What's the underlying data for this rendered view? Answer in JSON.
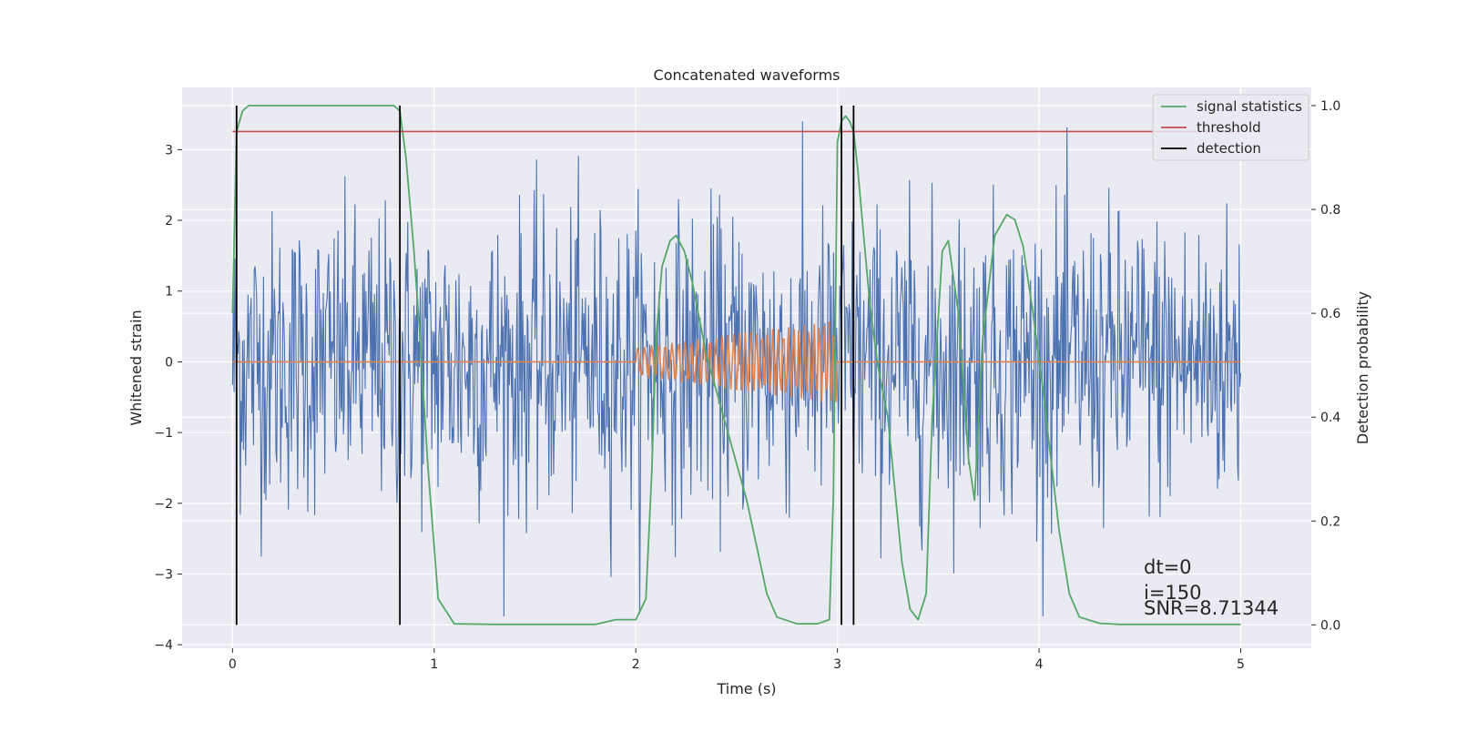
{
  "chart_data": {
    "type": "line",
    "title": "Concatenated waveforms",
    "xlabel": "Time (s)",
    "ylabel": "Whitened strain",
    "y2label": "Detection probability",
    "xlim": [
      -0.25,
      5.35
    ],
    "ylim": [
      -4.05,
      3.88
    ],
    "y2lim": [
      -0.045,
      1.035
    ],
    "xticks": [
      0,
      1,
      2,
      3,
      4,
      5
    ],
    "yticks": [
      -4,
      -3,
      -2,
      -1,
      0,
      1,
      2,
      3
    ],
    "y2ticks": [
      0.0,
      0.2,
      0.4,
      0.6,
      0.8,
      1.0
    ],
    "grid": true,
    "legend_position": "top-right",
    "colors": {
      "background": "#eaeaf2",
      "grid": "#ffffff",
      "noise": "#4c72b0",
      "waveform": "#dd8452",
      "signal_statistics": "#55a868",
      "threshold": "#c44e52",
      "detection": "#000000"
    },
    "series": [
      {
        "name": "signal statistics",
        "axis": "right",
        "x": [
          0.0,
          0.02,
          0.05,
          0.08,
          0.1,
          0.2,
          0.4,
          0.6,
          0.75,
          0.8,
          0.83,
          0.86,
          0.9,
          0.93,
          0.97,
          1.0,
          1.02,
          1.1,
          1.3,
          1.6,
          1.8,
          1.9,
          2.0,
          2.05,
          2.08,
          2.1,
          2.13,
          2.17,
          2.2,
          2.24,
          2.28,
          2.35,
          2.45,
          2.55,
          2.6,
          2.65,
          2.7,
          2.8,
          2.9,
          2.96,
          2.98,
          3.0,
          3.02,
          3.04,
          3.06,
          3.08,
          3.1,
          3.13,
          3.16,
          3.2,
          3.25,
          3.28,
          3.32,
          3.36,
          3.4,
          3.44,
          3.47,
          3.52,
          3.55,
          3.6,
          3.65,
          3.68,
          3.72,
          3.78,
          3.84,
          3.88,
          3.92,
          3.97,
          4.02,
          4.07,
          4.1,
          4.15,
          4.2,
          4.3,
          4.4,
          4.6,
          4.8,
          5.0
        ],
        "y": [
          0.6,
          0.95,
          0.99,
          1.0,
          1.0,
          1.0,
          1.0,
          1.0,
          1.0,
          1.0,
          0.99,
          0.9,
          0.72,
          0.55,
          0.3,
          0.15,
          0.05,
          0.002,
          0.001,
          0.001,
          0.001,
          0.01,
          0.01,
          0.05,
          0.3,
          0.55,
          0.69,
          0.74,
          0.75,
          0.72,
          0.66,
          0.52,
          0.38,
          0.24,
          0.15,
          0.06,
          0.015,
          0.002,
          0.002,
          0.01,
          0.25,
          0.93,
          0.97,
          0.98,
          0.97,
          0.95,
          0.88,
          0.75,
          0.62,
          0.5,
          0.4,
          0.28,
          0.12,
          0.03,
          0.01,
          0.06,
          0.4,
          0.72,
          0.74,
          0.6,
          0.32,
          0.24,
          0.55,
          0.75,
          0.79,
          0.78,
          0.73,
          0.6,
          0.45,
          0.28,
          0.18,
          0.06,
          0.015,
          0.003,
          0.001,
          0.001,
          0.001,
          0.001
        ]
      },
      {
        "name": "threshold",
        "axis": "right",
        "x": [
          0.0,
          5.0
        ],
        "y": [
          0.95,
          0.95
        ]
      },
      {
        "name": "detection",
        "axis": "right",
        "x": [
          0.02,
          0.83,
          3.02,
          3.08
        ],
        "y_range": [
          0.0,
          1.0
        ]
      }
    ],
    "annotations": [
      {
        "text": "dt=0"
      },
      {
        "text": "i=150"
      },
      {
        "text": "SNR=8.71344"
      }
    ]
  }
}
